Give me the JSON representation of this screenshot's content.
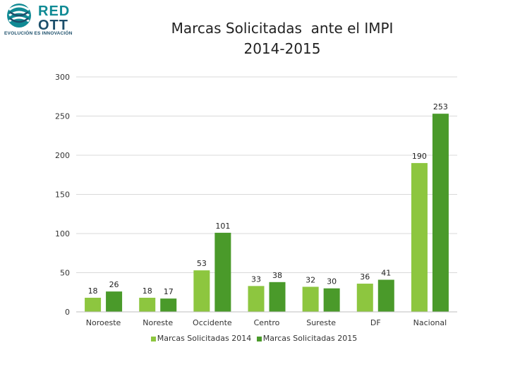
{
  "logo": {
    "text_line1": "RED",
    "text_line2": "OTT",
    "tagline": "EVOLUCIÓN ES INNOVACIÓN"
  },
  "chart_data": {
    "type": "bar",
    "title": "Marcas Solicitadas  ante el IMPI",
    "subtitle": "2014-2015",
    "categories": [
      "Noroeste",
      "Noreste",
      "Occidente",
      "Centro",
      "Sureste",
      "DF",
      "Nacional"
    ],
    "series": [
      {
        "name": "Marcas Solicitadas 2014",
        "values": [
          18,
          18,
          53,
          33,
          32,
          36,
          190
        ],
        "color": "#8dc63f"
      },
      {
        "name": "Marcas Solicitadas 2015",
        "values": [
          26,
          17,
          101,
          38,
          30,
          41,
          253
        ],
        "color": "#4a9a2a"
      }
    ],
    "ylim": [
      0,
      300
    ],
    "yticks": [
      0,
      50,
      100,
      150,
      200,
      250,
      300
    ],
    "grid": true,
    "legend_position": "bottom"
  }
}
